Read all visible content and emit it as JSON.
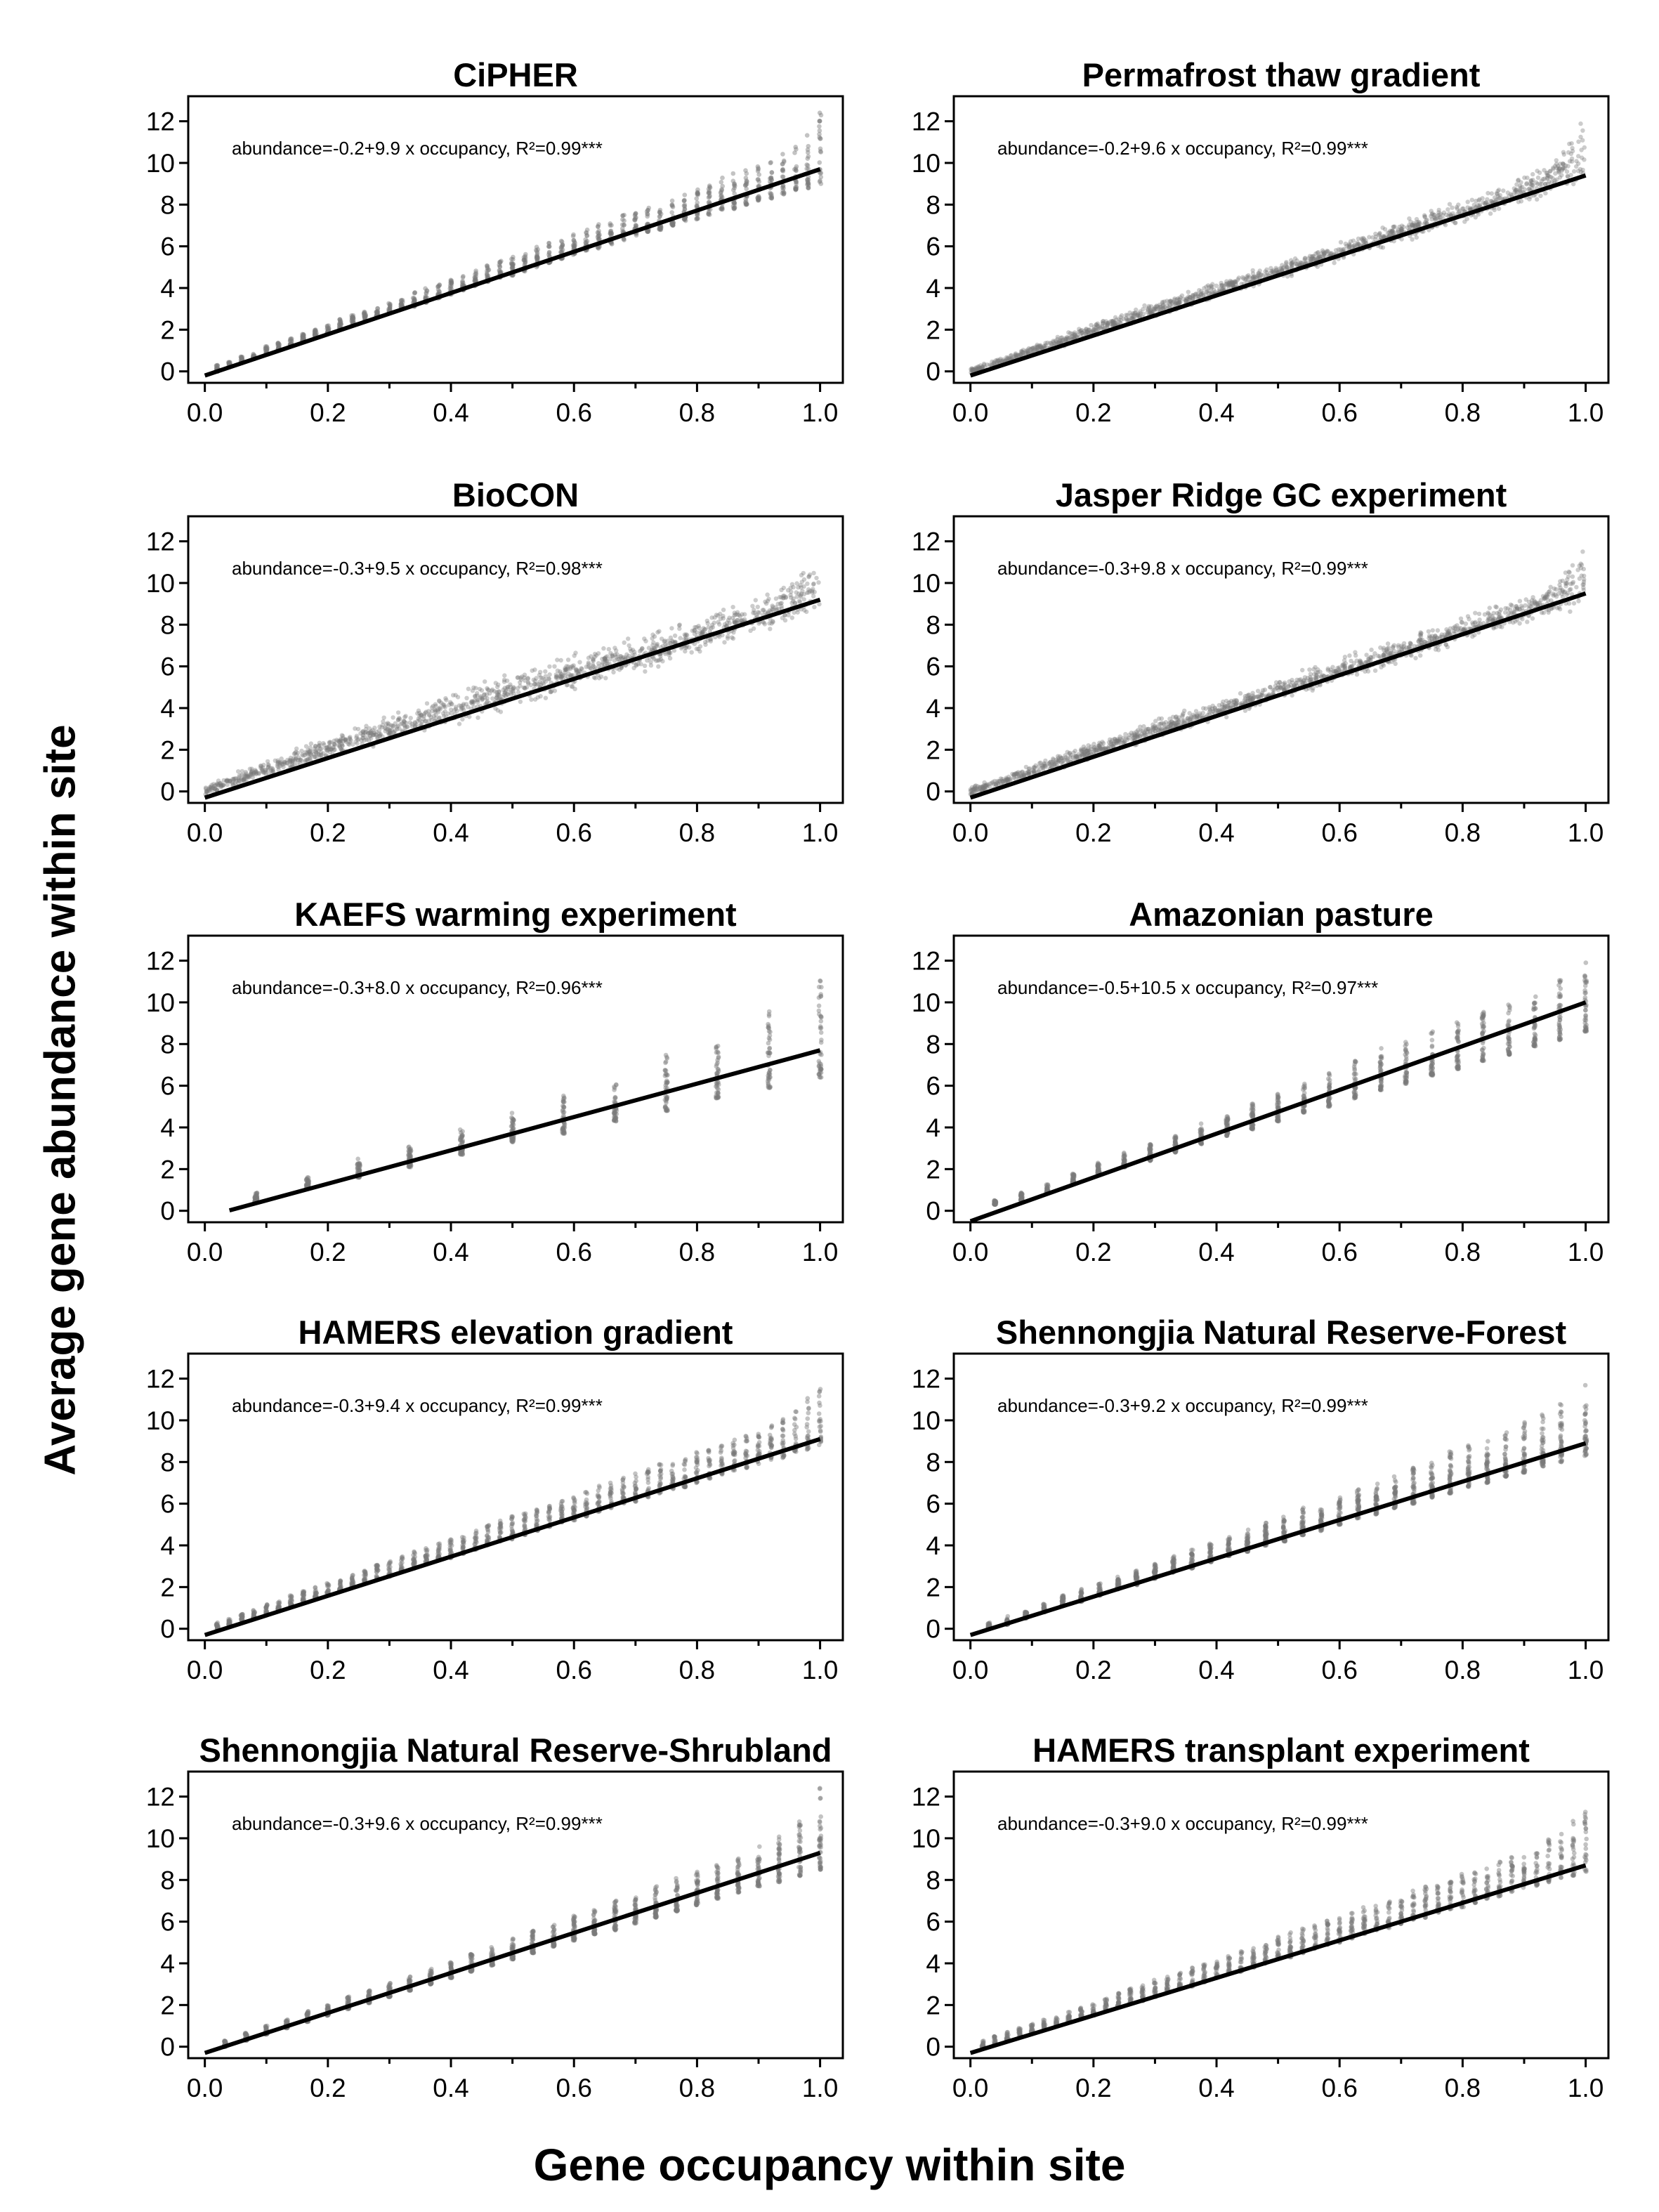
{
  "figure": {
    "xlabel": "Gene occupancy within site",
    "ylabel": "Average gene abundance within site"
  },
  "colors": {
    "points": "#7a7a7a",
    "fit_line": "#000000",
    "frame": "#000000"
  },
  "chart_data": [
    {
      "type": "scatter",
      "title": "CiPHER",
      "annotation": "abundance=-0.2+9.9 x occupancy, R²=0.99***",
      "intercept": -0.2,
      "slope": 9.9,
      "r2": 0.99,
      "density": "dense",
      "xlim": [
        0,
        1
      ],
      "ylim": [
        0,
        12
      ],
      "xticks": [
        "0.0",
        "0.2",
        "0.4",
        "0.6",
        "0.8",
        "1.0"
      ],
      "yticks": [
        "0",
        "2",
        "4",
        "6",
        "8",
        "10",
        "12"
      ],
      "x": [
        0.02,
        0.04,
        0.06,
        0.08,
        0.1,
        0.12,
        0.14,
        0.16,
        0.18,
        0.2,
        0.22,
        0.24,
        0.26,
        0.28,
        0.3,
        0.32,
        0.34,
        0.36,
        0.38,
        0.4,
        0.42,
        0.44,
        0.46,
        0.48,
        0.5,
        0.52,
        0.54,
        0.56,
        0.58,
        0.6,
        0.62,
        0.64,
        0.66,
        0.68,
        0.7,
        0.72,
        0.74,
        0.76,
        0.78,
        0.8,
        0.82,
        0.84,
        0.86,
        0.88,
        0.9,
        0.92,
        0.94,
        0.96,
        0.98,
        1.0
      ],
      "y_min": [
        0.0,
        0.2,
        0.4,
        0.6,
        0.8,
        1.0,
        1.2,
        1.4,
        1.6,
        1.8,
        2.0,
        2.2,
        2.4,
        2.6,
        2.8,
        3.0,
        3.1,
        3.3,
        3.5,
        3.7,
        3.9,
        4.1,
        4.3,
        4.5,
        4.6,
        4.8,
        5.0,
        5.2,
        5.4,
        5.6,
        5.8,
        5.9,
        6.1,
        6.3,
        6.5,
        6.7,
        6.8,
        7.0,
        7.2,
        7.3,
        7.5,
        7.7,
        7.8,
        8.0,
        8.2,
        8.3,
        8.5,
        8.7,
        8.8,
        9.0
      ],
      "y_max": [
        0.3,
        0.5,
        0.7,
        0.9,
        1.2,
        1.4,
        1.6,
        1.8,
        2.0,
        2.2,
        2.5,
        2.7,
        2.9,
        3.1,
        3.3,
        3.5,
        3.8,
        4.0,
        4.2,
        4.4,
        4.6,
        4.9,
        5.1,
        5.3,
        5.5,
        5.7,
        6.0,
        6.2,
        6.4,
        6.6,
        6.8,
        7.1,
        7.3,
        7.5,
        7.7,
        7.9,
        8.2,
        8.4,
        8.6,
        8.8,
        9.0,
        9.3,
        9.5,
        9.7,
        9.9,
        10.2,
        10.5,
        10.9,
        11.5,
        12.7
      ]
    },
    {
      "type": "scatter",
      "title": "Permafrost thaw gradient",
      "annotation": "abundance=-0.2+9.6 x occupancy, R²=0.99***",
      "intercept": -0.2,
      "slope": 9.6,
      "r2": 0.99,
      "density": "continuous",
      "xlim": [
        0,
        1
      ],
      "ylim": [
        0,
        12
      ],
      "xticks": [
        "0.0",
        "0.2",
        "0.4",
        "0.6",
        "0.8",
        "1.0"
      ],
      "yticks": [
        "0",
        "2",
        "4",
        "6",
        "8",
        "10",
        "12"
      ],
      "x": [
        0.0,
        0.1,
        0.2,
        0.3,
        0.4,
        0.5,
        0.6,
        0.7,
        0.8,
        0.9,
        0.95,
        1.0
      ],
      "y_min": [
        -0.2,
        0.7,
        1.6,
        2.5,
        3.4,
        4.3,
        5.2,
        6.1,
        7.0,
        7.9,
        8.3,
        8.7
      ],
      "y_max": [
        0.2,
        1.3,
        2.4,
        3.4,
        4.4,
        5.3,
        6.3,
        7.3,
        8.3,
        9.5,
        10.4,
        12.4
      ]
    },
    {
      "type": "scatter",
      "title": "BioCON",
      "annotation": "abundance=-0.3+9.5 x occupancy, R²=0.98***",
      "intercept": -0.3,
      "slope": 9.5,
      "r2": 0.98,
      "density": "continuous",
      "xlim": [
        0,
        1
      ],
      "ylim": [
        0,
        12
      ],
      "xticks": [
        "0.0",
        "0.2",
        "0.4",
        "0.6",
        "0.8",
        "1.0"
      ],
      "yticks": [
        "0",
        "2",
        "4",
        "6",
        "8",
        "10",
        "12"
      ],
      "x": [
        0.0,
        0.1,
        0.2,
        0.3,
        0.4,
        0.5,
        0.6,
        0.7,
        0.8,
        0.9,
        0.95,
        1.0
      ],
      "y_min": [
        -0.3,
        0.6,
        1.4,
        2.2,
        3.0,
        3.8,
        4.7,
        5.5,
        6.4,
        7.4,
        8.0,
        8.2
      ],
      "y_max": [
        0.3,
        1.6,
        2.7,
        3.8,
        4.9,
        5.9,
        6.8,
        7.6,
        8.5,
        9.4,
        10.3,
        11.9
      ]
    },
    {
      "type": "scatter",
      "title": "Jasper Ridge GC experiment",
      "annotation": "abundance=-0.3+9.8 x occupancy, R²=0.99***",
      "intercept": -0.3,
      "slope": 9.8,
      "r2": 0.99,
      "density": "continuous",
      "xlim": [
        0,
        1
      ],
      "ylim": [
        0,
        12
      ],
      "xticks": [
        "0.0",
        "0.2",
        "0.4",
        "0.6",
        "0.8",
        "1.0"
      ],
      "yticks": [
        "0",
        "2",
        "4",
        "6",
        "8",
        "10",
        "12"
      ],
      "x": [
        0.0,
        0.1,
        0.2,
        0.3,
        0.4,
        0.5,
        0.6,
        0.7,
        0.8,
        0.9,
        0.95,
        1.0
      ],
      "y_min": [
        -0.3,
        0.6,
        1.5,
        2.4,
        3.3,
        4.2,
        5.1,
        6.0,
        7.0,
        7.9,
        8.3,
        8.6
      ],
      "y_max": [
        0.3,
        1.4,
        2.4,
        3.5,
        4.5,
        5.5,
        6.5,
        7.5,
        8.5,
        9.5,
        10.4,
        12.4
      ]
    },
    {
      "type": "scatter",
      "title": "KAEFS warming experiment",
      "annotation": "abundance=-0.3+8.0 x occupancy, R²=0.96***",
      "intercept": -0.3,
      "slope": 8.0,
      "r2": 0.96,
      "density": "sparse",
      "fit_xrange": [
        0.04,
        1.0
      ],
      "xlim": [
        0,
        1
      ],
      "ylim": [
        0,
        12
      ],
      "xticks": [
        "0.0",
        "0.2",
        "0.4",
        "0.6",
        "0.8",
        "1.0"
      ],
      "yticks": [
        "0",
        "2",
        "4",
        "6",
        "8",
        "10",
        "12"
      ],
      "x": [
        0.083,
        0.167,
        0.25,
        0.333,
        0.417,
        0.5,
        0.583,
        0.667,
        0.75,
        0.833,
        0.917,
        1.0
      ],
      "y_min": [
        0.4,
        1.1,
        1.6,
        2.1,
        2.7,
        3.3,
        3.7,
        4.3,
        4.8,
        5.4,
        5.9,
        6.4
      ],
      "y_max": [
        0.9,
        1.6,
        2.5,
        3.1,
        3.9,
        4.7,
        5.8,
        6.2,
        7.5,
        8.1,
        9.6,
        11.2
      ]
    },
    {
      "type": "scatter",
      "title": "Amazonian pasture",
      "annotation": "abundance=-0.5+10.5 x occupancy, R²=0.97***",
      "intercept": -0.5,
      "slope": 10.5,
      "r2": 0.97,
      "density": "medium",
      "xlim": [
        0,
        1
      ],
      "ylim": [
        0,
        12
      ],
      "xticks": [
        "0.0",
        "0.2",
        "0.4",
        "0.6",
        "0.8",
        "1.0"
      ],
      "yticks": [
        "0",
        "2",
        "4",
        "6",
        "8",
        "10",
        "12"
      ],
      "x": [
        0.04,
        0.083,
        0.125,
        0.167,
        0.208,
        0.25,
        0.292,
        0.333,
        0.375,
        0.417,
        0.458,
        0.5,
        0.542,
        0.583,
        0.625,
        0.667,
        0.708,
        0.75,
        0.792,
        0.833,
        0.875,
        0.917,
        0.958,
        1.0
      ],
      "y_min": [
        0.3,
        0.5,
        0.9,
        1.3,
        1.8,
        2.1,
        2.4,
        2.8,
        3.2,
        3.6,
        3.9,
        4.3,
        4.7,
        5.0,
        5.4,
        5.8,
        6.1,
        6.5,
        6.8,
        7.2,
        7.5,
        7.9,
        8.2,
        8.6
      ],
      "y_max": [
        0.5,
        0.9,
        1.3,
        1.8,
        2.3,
        2.8,
        3.2,
        3.6,
        4.2,
        4.6,
        5.2,
        5.6,
        6.1,
        6.6,
        7.2,
        7.8,
        8.1,
        8.6,
        9.1,
        9.6,
        10.1,
        10.6,
        11.2,
        12.1
      ]
    },
    {
      "type": "scatter",
      "title": "HAMERS elevation gradient",
      "annotation": "abundance=-0.3+9.4 x occupancy, R²=0.99***",
      "intercept": -0.3,
      "slope": 9.4,
      "r2": 0.99,
      "density": "dense",
      "xlim": [
        0,
        1
      ],
      "ylim": [
        0,
        12
      ],
      "xticks": [
        "0.0",
        "0.2",
        "0.4",
        "0.6",
        "0.8",
        "1.0"
      ],
      "yticks": [
        "0",
        "2",
        "4",
        "6",
        "8",
        "10",
        "12"
      ],
      "x": [
        0.02,
        0.04,
        0.06,
        0.08,
        0.1,
        0.12,
        0.14,
        0.16,
        0.18,
        0.2,
        0.22,
        0.24,
        0.26,
        0.28,
        0.3,
        0.32,
        0.34,
        0.36,
        0.38,
        0.4,
        0.42,
        0.44,
        0.46,
        0.48,
        0.5,
        0.52,
        0.54,
        0.56,
        0.58,
        0.6,
        0.62,
        0.64,
        0.66,
        0.68,
        0.7,
        0.72,
        0.74,
        0.76,
        0.78,
        0.8,
        0.82,
        0.84,
        0.86,
        0.88,
        0.9,
        0.92,
        0.94,
        0.96,
        0.98,
        1.0
      ],
      "y_min": [
        0.0,
        0.2,
        0.4,
        0.5,
        0.7,
        0.9,
        1.1,
        1.3,
        1.5,
        1.6,
        1.8,
        2.0,
        2.2,
        2.4,
        2.5,
        2.7,
        2.9,
        3.1,
        3.3,
        3.4,
        3.6,
        3.8,
        4.0,
        4.2,
        4.3,
        4.5,
        4.7,
        4.9,
        5.1,
        5.2,
        5.4,
        5.6,
        5.8,
        6.0,
        6.1,
        6.3,
        6.5,
        6.7,
        6.8,
        7.0,
        7.2,
        7.4,
        7.6,
        7.7,
        7.9,
        8.1,
        8.2,
        8.4,
        8.6,
        8.8
      ],
      "y_max": [
        0.3,
        0.5,
        0.7,
        0.9,
        1.2,
        1.4,
        1.6,
        1.8,
        2.0,
        2.2,
        2.4,
        2.6,
        2.9,
        3.1,
        3.3,
        3.5,
        3.7,
        3.9,
        4.1,
        4.3,
        4.5,
        4.7,
        5.0,
        5.2,
        5.4,
        5.6,
        5.8,
        6.0,
        6.2,
        6.4,
        6.6,
        6.9,
        7.1,
        7.3,
        7.5,
        7.7,
        7.9,
        8.1,
        8.3,
        8.5,
        8.7,
        8.9,
        9.1,
        9.3,
        9.5,
        9.8,
        10.1,
        10.5,
        11.1,
        12.0
      ]
    },
    {
      "type": "scatter",
      "title": "Shennongjia Natural Reserve-Forest",
      "annotation": "abundance=-0.3+9.2 x occupancy, R²=0.99***",
      "intercept": -0.3,
      "slope": 9.2,
      "r2": 0.99,
      "density": "medium",
      "xlim": [
        0,
        1
      ],
      "ylim": [
        0,
        12
      ],
      "xticks": [
        "0.0",
        "0.2",
        "0.4",
        "0.6",
        "0.8",
        "1.0"
      ],
      "yticks": [
        "0",
        "2",
        "4",
        "6",
        "8",
        "10",
        "12"
      ],
      "x": [
        0.03,
        0.06,
        0.09,
        0.12,
        0.15,
        0.18,
        0.21,
        0.24,
        0.27,
        0.3,
        0.33,
        0.36,
        0.39,
        0.42,
        0.45,
        0.48,
        0.51,
        0.54,
        0.57,
        0.6,
        0.63,
        0.66,
        0.69,
        0.72,
        0.75,
        0.78,
        0.81,
        0.84,
        0.87,
        0.9,
        0.93,
        0.96,
        1.0
      ],
      "y_min": [
        0.0,
        0.2,
        0.5,
        0.8,
        1.1,
        1.3,
        1.6,
        1.9,
        2.1,
        2.4,
        2.7,
        2.9,
        3.2,
        3.5,
        3.7,
        4.0,
        4.2,
        4.5,
        4.7,
        5.0,
        5.3,
        5.5,
        5.8,
        6.0,
        6.3,
        6.5,
        6.8,
        7.0,
        7.3,
        7.5,
        7.8,
        8.0,
        8.3
      ],
      "y_max": [
        0.3,
        0.6,
        0.9,
        1.2,
        1.6,
        1.9,
        2.2,
        2.5,
        2.8,
        3.1,
        3.5,
        3.8,
        4.1,
        4.4,
        4.8,
        5.1,
        5.4,
        5.8,
        6.1,
        6.4,
        6.8,
        7.1,
        7.4,
        7.8,
        8.1,
        8.5,
        8.8,
        9.2,
        9.5,
        9.9,
        10.3,
        10.8,
        12.0
      ]
    },
    {
      "type": "scatter",
      "title": "Shennongjia Natural Reserve-Shrubland",
      "annotation": "abundance=-0.3+9.6 x occupancy, R²=0.99***",
      "intercept": -0.3,
      "slope": 9.6,
      "r2": 0.99,
      "density": "medium",
      "xlim": [
        0,
        1
      ],
      "ylim": [
        0,
        12
      ],
      "xticks": [
        "0.0",
        "0.2",
        "0.4",
        "0.6",
        "0.8",
        "1.0"
      ],
      "yticks": [
        "0",
        "2",
        "4",
        "6",
        "8",
        "10",
        "12"
      ],
      "x": [
        0.033,
        0.067,
        0.1,
        0.133,
        0.167,
        0.2,
        0.233,
        0.267,
        0.3,
        0.333,
        0.367,
        0.4,
        0.433,
        0.467,
        0.5,
        0.533,
        0.567,
        0.6,
        0.633,
        0.667,
        0.7,
        0.733,
        0.767,
        0.8,
        0.833,
        0.867,
        0.9,
        0.933,
        0.967,
        1.0
      ],
      "y_min": [
        0.0,
        0.3,
        0.6,
        0.9,
        1.2,
        1.5,
        1.8,
        2.1,
        2.4,
        2.7,
        3.0,
        3.3,
        3.6,
        3.9,
        4.2,
        4.5,
        4.8,
        5.1,
        5.4,
        5.6,
        5.9,
        6.2,
        6.5,
        6.8,
        7.1,
        7.4,
        7.7,
        7.9,
        8.2,
        8.5
      ],
      "y_max": [
        0.3,
        0.7,
        1.0,
        1.3,
        1.7,
        2.0,
        2.4,
        2.7,
        3.1,
        3.4,
        3.8,
        4.1,
        4.5,
        4.8,
        5.2,
        5.6,
        5.9,
        6.3,
        6.6,
        7.0,
        7.3,
        7.7,
        8.1,
        8.4,
        8.8,
        9.2,
        9.6,
        10.1,
        10.8,
        12.5
      ]
    },
    {
      "type": "scatter",
      "title": "HAMERS transplant experiment",
      "annotation": "abundance=-0.3+9.0 x occupancy, R²=0.99***",
      "intercept": -0.3,
      "slope": 9.0,
      "r2": 0.99,
      "density": "dense",
      "xlim": [
        0,
        1
      ],
      "ylim": [
        0,
        12
      ],
      "xticks": [
        "0.0",
        "0.2",
        "0.4",
        "0.6",
        "0.8",
        "1.0"
      ],
      "yticks": [
        "0",
        "2",
        "4",
        "6",
        "8",
        "10",
        "12"
      ],
      "x": [
        0.02,
        0.04,
        0.06,
        0.08,
        0.1,
        0.12,
        0.14,
        0.16,
        0.18,
        0.2,
        0.22,
        0.24,
        0.26,
        0.28,
        0.3,
        0.32,
        0.34,
        0.36,
        0.38,
        0.4,
        0.42,
        0.44,
        0.46,
        0.48,
        0.5,
        0.52,
        0.54,
        0.56,
        0.58,
        0.6,
        0.62,
        0.64,
        0.66,
        0.68,
        0.7,
        0.72,
        0.74,
        0.76,
        0.78,
        0.8,
        0.82,
        0.84,
        0.86,
        0.88,
        0.9,
        0.92,
        0.94,
        0.96,
        0.98,
        1.0
      ],
      "y_min": [
        0.0,
        0.1,
        0.3,
        0.5,
        0.7,
        0.8,
        1.0,
        1.2,
        1.4,
        1.5,
        1.7,
        1.9,
        2.1,
        2.2,
        2.4,
        2.6,
        2.8,
        2.9,
        3.1,
        3.3,
        3.5,
        3.6,
        3.8,
        4.0,
        4.2,
        4.3,
        4.5,
        4.7,
        4.9,
        5.0,
        5.2,
        5.4,
        5.6,
        5.7,
        5.9,
        6.1,
        6.2,
        6.4,
        6.6,
        6.7,
        6.9,
        7.1,
        7.2,
        7.4,
        7.6,
        7.7,
        7.9,
        8.1,
        8.2,
        8.4
      ],
      "y_max": [
        0.3,
        0.5,
        0.7,
        0.9,
        1.1,
        1.3,
        1.5,
        1.7,
        1.9,
        2.1,
        2.3,
        2.6,
        2.8,
        3.0,
        3.2,
        3.4,
        3.6,
        3.8,
        4.0,
        4.2,
        4.4,
        4.6,
        4.8,
        5.0,
        5.3,
        5.5,
        5.7,
        5.9,
        6.1,
        6.3,
        6.5,
        6.7,
        6.9,
        7.1,
        7.3,
        7.5,
        7.7,
        7.9,
        8.1,
        8.3,
        8.5,
        8.7,
        8.9,
        9.1,
        9.4,
        9.7,
        10.0,
        10.4,
        10.9,
        11.6
      ]
    }
  ]
}
